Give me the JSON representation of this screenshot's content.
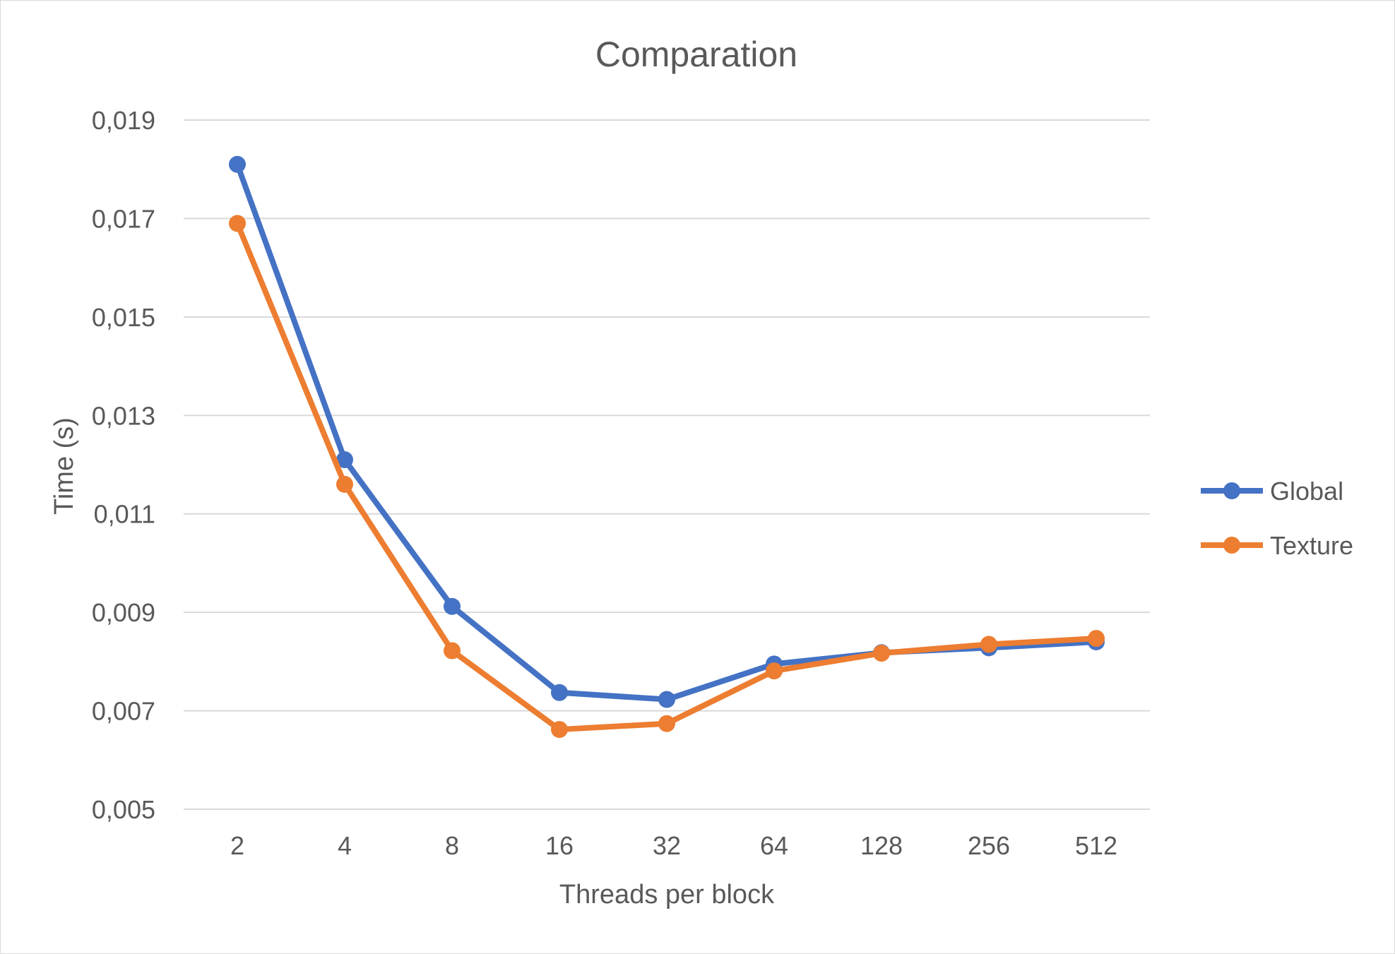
{
  "chart_data": {
    "type": "line",
    "title": "Comparation",
    "xlabel": "Threads per block",
    "ylabel": "Time (s)",
    "categories": [
      "2",
      "4",
      "8",
      "16",
      "32",
      "64",
      "128",
      "256",
      "512"
    ],
    "y_ticks": [
      "0,019",
      "0,017",
      "0,015",
      "0,013",
      "0,011",
      "0,009",
      "0,007",
      "0,005"
    ],
    "ylim": [
      0.005,
      0.019
    ],
    "grid": true,
    "legend_position": "right",
    "series": [
      {
        "name": "Global",
        "color": "#4472c4",
        "values": [
          0.0181,
          0.0121,
          0.00912,
          0.00737,
          0.00723,
          0.00795,
          0.00818,
          0.00828,
          0.0084
        ]
      },
      {
        "name": "Texture",
        "color": "#ed7d31",
        "values": [
          0.0169,
          0.0116,
          0.00822,
          0.00662,
          0.00674,
          0.00781,
          0.00817,
          0.00835,
          0.00847
        ]
      }
    ]
  }
}
